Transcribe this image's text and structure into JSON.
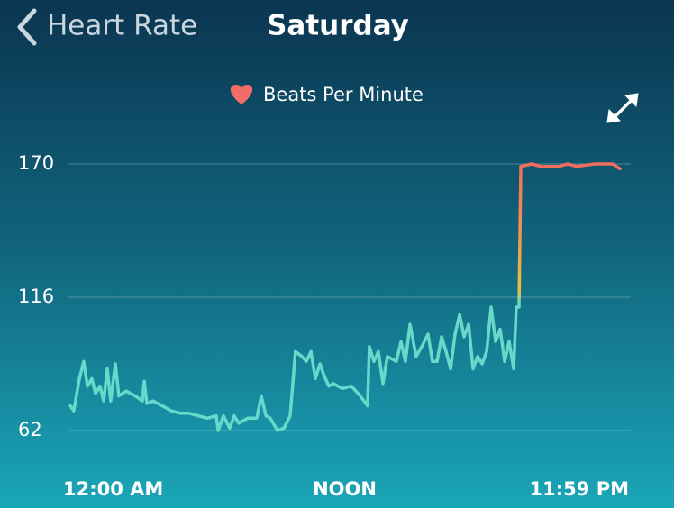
{
  "header": {
    "back": "Heart Rate",
    "title": "Saturday"
  },
  "chart_data": {
    "type": "line",
    "xlim": [
      0,
      24
    ],
    "xticks": [
      {
        "value": 0,
        "label": "12:00 AM"
      },
      {
        "value": 12,
        "label": "NOON"
      },
      {
        "value": 23.98,
        "label": "11:59 PM"
      }
    ],
    "ylim": [
      50,
      180
    ],
    "yticks": [
      62,
      116,
      170
    ],
    "grid": true,
    "high_colors": [
      "#f26d5d",
      "#f39a4c",
      "#e8c23a"
    ],
    "series": [
      {
        "name": "Beats Per Minute",
        "color": "#66d9cb",
        "legend_color": "#f26d6a",
        "x": [
          0.12,
          0.27,
          0.51,
          0.7,
          0.86,
          1.05,
          1.21,
          1.4,
          1.56,
          1.72,
          1.87,
          2.07,
          2.22,
          2.54,
          2.93,
          3.24,
          3.32,
          3.43,
          3.71,
          4.1,
          4.49,
          4.88,
          5.27,
          5.66,
          6.05,
          6.44,
          6.52,
          6.75,
          7.02,
          7.22,
          7.41,
          7.8,
          8.19,
          8.39,
          8.59,
          8.78,
          9.09,
          9.37,
          9.64,
          9.87,
          10.15,
          10.34,
          10.54,
          10.73,
          10.93,
          11.12,
          11.32,
          11.51,
          11.9,
          12.29,
          12.68,
          12.99,
          13.07,
          13.27,
          13.46,
          13.66,
          13.85,
          14.24,
          14.44,
          14.63,
          14.83,
          15.1,
          15.34,
          15.61,
          15.8,
          16.0,
          16.2,
          16.39,
          16.59,
          16.78,
          16.98,
          17.17,
          17.37,
          17.56,
          17.76,
          17.95,
          18.15,
          18.34,
          18.54,
          18.73,
          18.93,
          19.12,
          19.32,
          19.43,
          19.55,
          19.63,
          20.1,
          20.49,
          21.27,
          21.66,
          22.05,
          22.83,
          23.61,
          23.92
        ],
        "values": [
          72,
          70,
          83,
          90,
          80,
          83,
          77,
          80,
          74,
          87,
          74,
          89,
          76,
          78,
          76,
          74,
          82,
          73,
          74,
          72,
          70,
          69,
          69,
          68,
          67,
          68,
          62,
          68,
          63,
          68,
          65,
          67,
          67,
          76,
          68,
          67,
          62,
          63,
          68,
          94,
          92,
          90,
          94,
          83,
          89,
          84,
          80,
          81,
          79,
          80,
          76,
          72,
          96,
          90,
          94,
          81,
          92,
          90,
          98,
          90,
          105,
          92,
          96,
          101,
          90,
          90,
          100,
          94,
          87,
          101,
          109,
          100,
          105,
          87,
          92,
          89,
          94,
          112,
          98,
          103,
          90,
          98,
          87,
          112,
          112,
          169,
          170,
          169,
          169,
          170,
          169,
          170,
          170,
          168
        ]
      }
    ]
  }
}
